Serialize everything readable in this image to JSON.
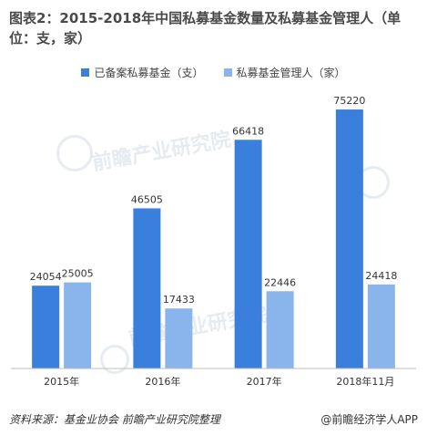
{
  "chart_data": {
    "type": "bar",
    "title": "图表2：2015-2018年中国私募基金数量及私募基金管理人（单位：支，家）",
    "categories": [
      "2015年",
      "2016年",
      "2017年",
      "2018年11月"
    ],
    "series": [
      {
        "name": "已备案私募基金（支）",
        "values": [
          24054,
          46505,
          66418,
          75220
        ],
        "color": "#3a7fdc"
      },
      {
        "name": "私募基金管理人（家）",
        "values": [
          25005,
          17433,
          22446,
          24418
        ],
        "color": "#8ab4ec"
      }
    ],
    "ylim": [
      0,
      80000
    ],
    "grid": false,
    "legend_position": "top-center",
    "data_labels": true
  },
  "watermark": {
    "text": "前瞻产业研究院",
    "color": "#b8c8d8"
  },
  "footer": {
    "source": "资料来源：基金业协会 前瞻产业研究院整理",
    "brand": "@前瞻经济学人APP"
  }
}
